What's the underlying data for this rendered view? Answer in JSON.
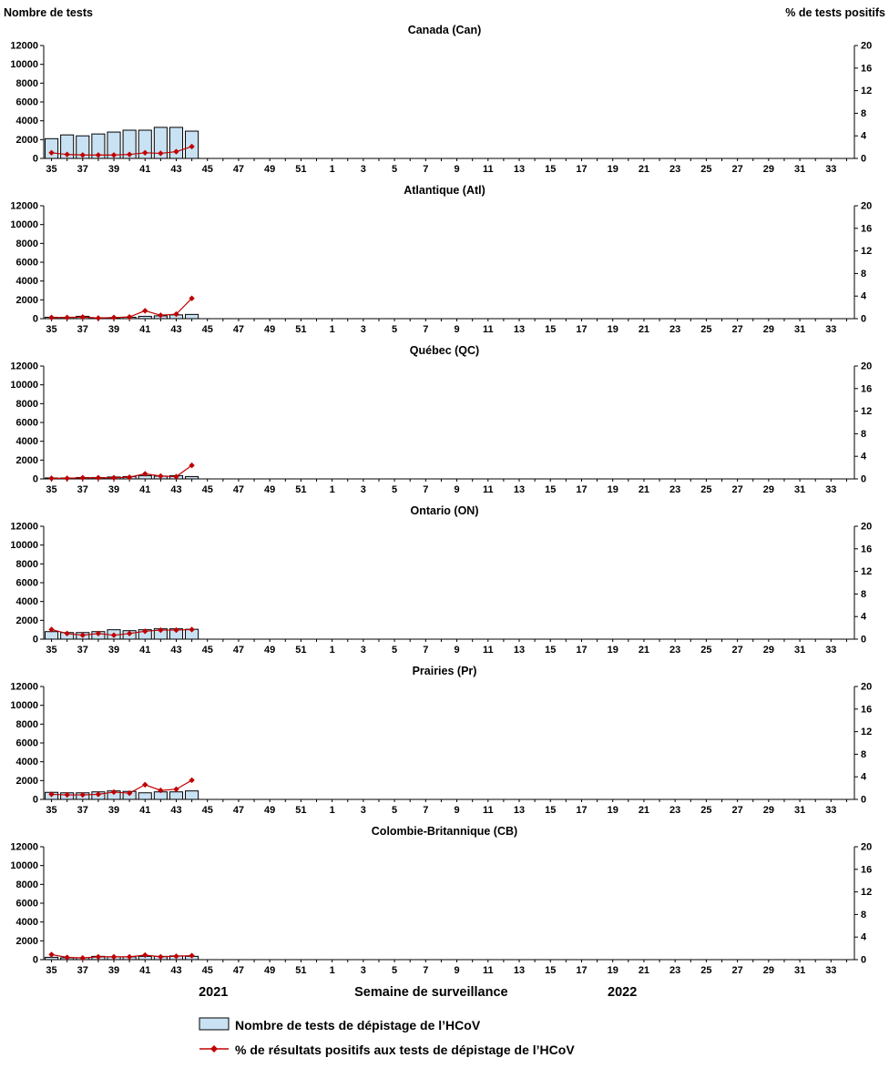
{
  "chart_data": {
    "type": "bar",
    "overlay_type": "line",
    "layout": "six stacked panels, shared axes, grid off",
    "x_label": "Semaine de surveillance",
    "year_left": "2021",
    "year_right": "2022",
    "left_axis": {
      "title": "Nombre de tests",
      "min": 0,
      "max": 12000,
      "ticks": [
        0,
        2000,
        4000,
        6000,
        8000,
        10000,
        12000
      ]
    },
    "right_axis": {
      "title": "% de tests positifs",
      "min": 0,
      "max": 20,
      "ticks": [
        0,
        4,
        8,
        12,
        16,
        20
      ]
    },
    "weeks": [
      35,
      36,
      37,
      38,
      39,
      40,
      41,
      42,
      43,
      44,
      45,
      46,
      47,
      48,
      49,
      50,
      51,
      52,
      1,
      2,
      3,
      4,
      5,
      6,
      7,
      8,
      9,
      10,
      11,
      12,
      13,
      14,
      15,
      16,
      17,
      18,
      19,
      20,
      21,
      22,
      23,
      24,
      25,
      26,
      27,
      28,
      29,
      30,
      31,
      32,
      33,
      34
    ],
    "data_weeks": [
      35,
      36,
      37,
      38,
      39,
      40,
      41,
      42,
      43,
      44
    ],
    "colors": {
      "bar_fill": "#C9E2F3",
      "bar_border": "#000000",
      "line": "#C00000",
      "marker": "#C00000"
    },
    "panels": [
      {
        "title": "Canada (Can)",
        "tests": [
          2100,
          2500,
          2400,
          2600,
          2800,
          3000,
          3000,
          3300,
          3300,
          2900
        ],
        "pct_positive": [
          1.0,
          0.7,
          0.6,
          0.6,
          0.6,
          0.7,
          1.0,
          0.9,
          1.2,
          2.1
        ]
      },
      {
        "title": "Atlantique (Atl)",
        "tests": [
          150,
          150,
          250,
          100,
          100,
          150,
          250,
          300,
          400,
          450
        ],
        "pct_positive": [
          0.2,
          0.2,
          0.3,
          0.1,
          0.2,
          0.3,
          1.4,
          0.6,
          0.8,
          3.6
        ]
      },
      {
        "title": "Québec (QC)",
        "tests": [
          100,
          100,
          150,
          150,
          200,
          250,
          350,
          300,
          350,
          250
        ],
        "pct_positive": [
          0.1,
          0.1,
          0.2,
          0.2,
          0.2,
          0.3,
          0.9,
          0.5,
          0.4,
          2.4
        ]
      },
      {
        "title": "Ontario (ON)",
        "tests": [
          800,
          700,
          700,
          800,
          1000,
          900,
          1000,
          1100,
          1100,
          1050
        ],
        "pct_positive": [
          1.7,
          1.0,
          0.7,
          1.0,
          0.7,
          1.0,
          1.4,
          1.6,
          1.6,
          1.7
        ]
      },
      {
        "title": "Prairies (Pr)",
        "tests": [
          750,
          700,
          700,
          800,
          900,
          850,
          700,
          800,
          800,
          900
        ],
        "pct_positive": [
          0.9,
          0.8,
          0.8,
          0.9,
          1.3,
          1.1,
          2.6,
          1.6,
          1.8,
          3.4
        ]
      },
      {
        "title": "Colombie-Britannique (CB)",
        "tests": [
          250,
          200,
          200,
          350,
          300,
          300,
          350,
          350,
          400,
          350
        ],
        "pct_positive": [
          0.9,
          0.4,
          0.3,
          0.5,
          0.5,
          0.5,
          0.8,
          0.5,
          0.6,
          0.7
        ]
      }
    ],
    "legend": [
      {
        "label": "Nombre de tests de dépistage de l’HCoV",
        "type": "bar"
      },
      {
        "label": "% de résultats positifs aux tests de dépistage de l’HCoV",
        "type": "line"
      }
    ]
  }
}
